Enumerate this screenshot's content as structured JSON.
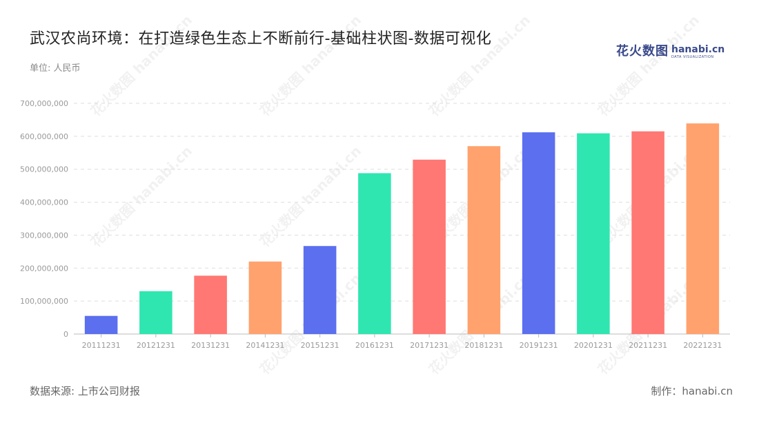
{
  "header": {
    "title": "武汉农尚环境：在打造绿色生态上不断前行-基础柱状图-数据可视化",
    "unit": "单位: 人民币"
  },
  "logo": {
    "cn": "花火数图",
    "en": "hanabi.cn",
    "sub": "DATA VISUALIZATION"
  },
  "footer": {
    "source": "数据来源: 上市公司财报",
    "credit": "制作：hanabi.cn"
  },
  "chart_data": {
    "type": "bar",
    "categories": [
      "20111231",
      "20121231",
      "20131231",
      "20141231",
      "20151231",
      "20161231",
      "20171231",
      "20181231",
      "20191231",
      "20201231",
      "20211231",
      "20221231"
    ],
    "values": [
      55000000,
      130000000,
      177000000,
      220000000,
      267000000,
      488000000,
      529000000,
      570000000,
      612000000,
      609000000,
      615000000,
      639000000
    ],
    "colors": [
      "#5b6fef",
      "#2fe6b1",
      "#ff7873",
      "#ffa26e"
    ],
    "ylim": [
      0,
      700000000
    ],
    "yticks": [
      0,
      100000000,
      200000000,
      300000000,
      400000000,
      500000000,
      600000000,
      700000000
    ],
    "ytick_labels": [
      "0",
      "100,000,000",
      "200,000,000",
      "300,000,000",
      "400,000,000",
      "500,000,000",
      "600,000,000",
      "700,000,000"
    ],
    "grid": true
  }
}
